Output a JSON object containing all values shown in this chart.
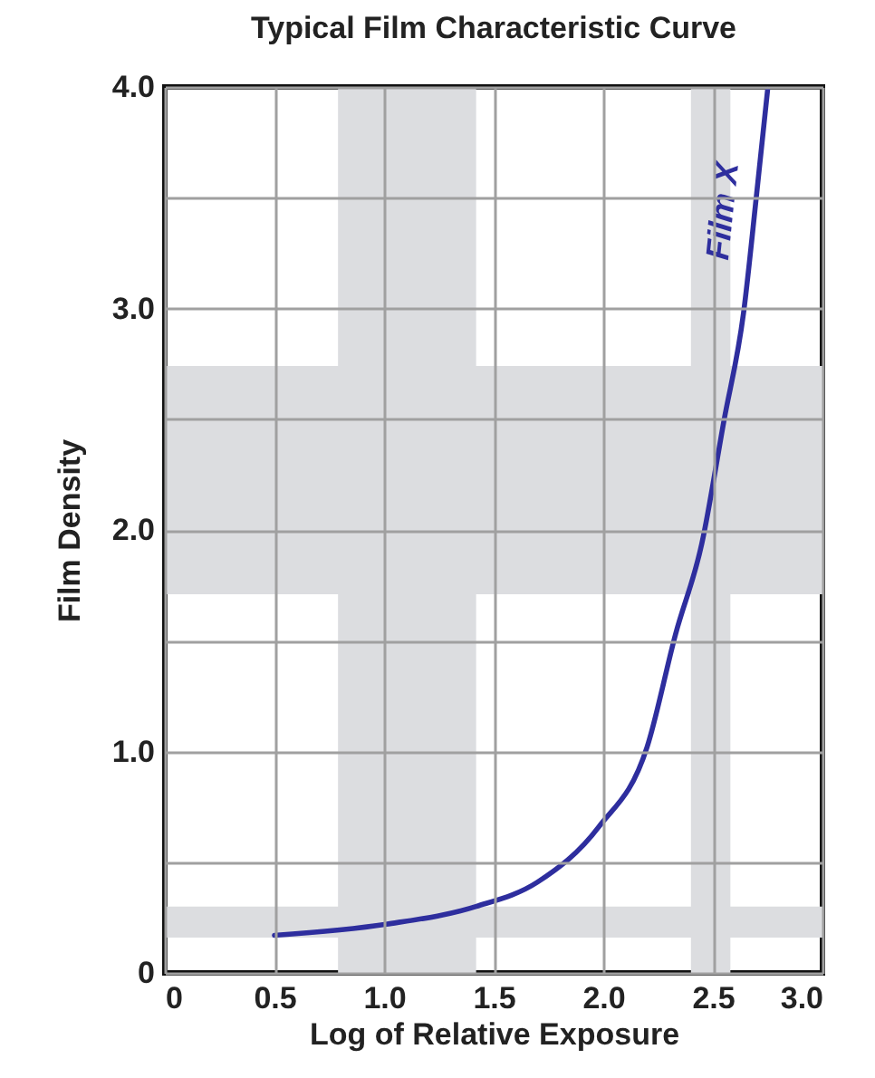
{
  "chart_data": {
    "type": "line",
    "title": "Typical Film Characteristic Curve",
    "xlabel": "Log of Relative Exposure",
    "ylabel": "Film Density",
    "xlim": [
      0,
      3
    ],
    "ylim": [
      0,
      4
    ],
    "xticks": [
      0,
      0.5,
      {
        "value": 1,
        "label": "1.0"
      },
      1.5,
      {
        "value": 2,
        "label": "2.0"
      },
      2.5,
      {
        "value": 3,
        "label": "3.0"
      }
    ],
    "yticks": [
      0,
      {
        "value": 0.5,
        "label": null
      },
      {
        "value": 1,
        "label": "1.0"
      },
      {
        "value": 1.5,
        "label": null
      },
      {
        "value": 2,
        "label": "2.0"
      },
      {
        "value": 2.5,
        "label": null
      },
      {
        "value": 3,
        "label": "3.0"
      },
      {
        "value": 3.5,
        "label": null
      },
      {
        "value": 4,
        "label": "4.0"
      }
    ],
    "grid": true,
    "marker": "none",
    "line_style": "solid",
    "bands": [
      {
        "axis": "y",
        "from": 1.71,
        "to": 2.74,
        "label": null,
        "color": "#dcdde0"
      },
      {
        "axis": "x",
        "from": 2.4,
        "to": 2.58,
        "label": null,
        "color": "#dcdde0"
      },
      {
        "axis": "y",
        "from": 0.16,
        "to": 0.3,
        "label": null,
        "color": "#dcdde0"
      },
      {
        "axis": "x",
        "from": 0.79,
        "to": 1.42,
        "label": null,
        "color": "#dcdde0"
      }
    ],
    "series": [
      {
        "name": "Film X",
        "color": "#2e2e9e",
        "x": [
          0.5,
          1.01,
          1.42,
          1.7,
          1.98,
          2.2,
          2.33,
          2.45,
          2.55,
          2.64,
          2.7,
          2.75
        ],
        "values": [
          0.17,
          0.22,
          0.3,
          0.41,
          0.66,
          1.02,
          1.53,
          1.94,
          2.49,
          2.98,
          3.52,
          3.99
        ]
      }
    ]
  }
}
